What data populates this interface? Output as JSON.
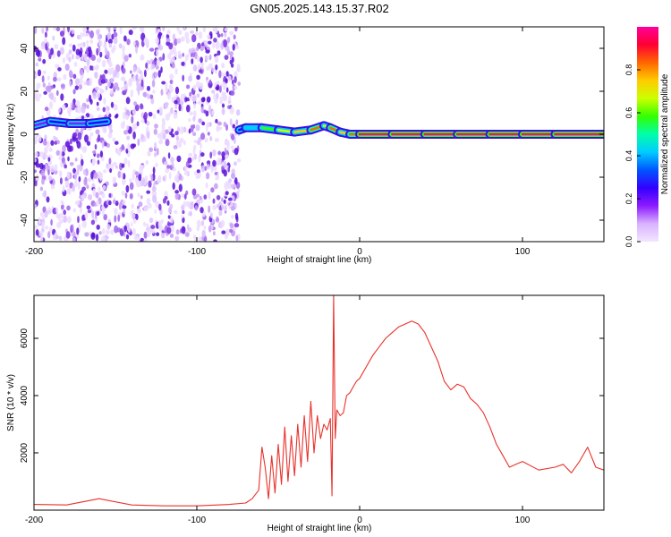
{
  "title": "GN05.2025.143.15.37.R02",
  "chart_data": [
    {
      "type": "heatmap",
      "xlabel": "Height of straight line (km)",
      "ylabel": "Frequency (Hz)",
      "xlim": [
        -200,
        150
      ],
      "ylim": [
        -50,
        50
      ],
      "xticks": [
        -200,
        -100,
        0,
        100
      ],
      "yticks": [
        -40,
        -20,
        0,
        20,
        40
      ],
      "colorbar": {
        "label": "Normalized spectral amplitude",
        "range": [
          0,
          1
        ],
        "ticks": [
          "0.0",
          "0.2",
          "0.4",
          "0.6",
          "0.8"
        ],
        "colormap": [
          "#f2e6ff",
          "#d9b3ff",
          "#8c1aff",
          "#3300ff",
          "#0055ff",
          "#00ccff",
          "#00ffaa",
          "#33ff00",
          "#ccff00",
          "#ffcc00",
          "#ff6600",
          "#ff0033",
          "#ff0099"
        ]
      },
      "noise_region": {
        "x": [
          -200,
          -74
        ],
        "y": [
          -50,
          50
        ],
        "amplitude": 0.15
      },
      "ridge": {
        "x": [
          -200,
          -190,
          -178,
          -166,
          -155,
          -74,
          -70,
          -60,
          -50,
          -40,
          -30,
          -22,
          -18,
          -12,
          -6,
          0,
          20,
          40,
          60,
          80,
          100,
          120,
          150
        ],
        "frequency": [
          4,
          6,
          5,
          5,
          6,
          2,
          3,
          3,
          2,
          1,
          2,
          4,
          3,
          1,
          0,
          0,
          0,
          0,
          0,
          0,
          0,
          0,
          0
        ],
        "amplitude": [
          0.2,
          0.25,
          0.18,
          0.22,
          0.2,
          0.3,
          0.45,
          0.6,
          0.7,
          0.8,
          0.85,
          0.7,
          0.9,
          0.8,
          0.85,
          1,
          1,
          1,
          1,
          1,
          1,
          1,
          1
        ]
      }
    },
    {
      "type": "line",
      "xlabel": "Height of straight line (km)",
      "ylabel": "SNR (10 * v/v)",
      "xlim": [
        -200,
        150
      ],
      "ylim": [
        0,
        7500
      ],
      "xticks": [
        -200,
        -100,
        0,
        100
      ],
      "yticks": [
        2000,
        4000,
        6000
      ],
      "color": "#e8322c",
      "series": [
        {
          "x": [
            -200,
            -180,
            -160,
            -140,
            -120,
            -100,
            -80,
            -70,
            -66,
            -62,
            -60,
            -58,
            -56,
            -54,
            -52,
            -50,
            -48,
            -46,
            -44,
            -42,
            -40,
            -38,
            -36,
            -34,
            -32,
            -30,
            -28,
            -26,
            -24,
            -22,
            -20,
            -18,
            -17,
            -16,
            -15,
            -14,
            -12,
            -10,
            -8,
            -6,
            -4,
            -2,
            0,
            4,
            8,
            12,
            16,
            20,
            24,
            28,
            32,
            36,
            40,
            44,
            48,
            52,
            56,
            60,
            64,
            68,
            72,
            76,
            80,
            84,
            88,
            92,
            96,
            100,
            110,
            120,
            125,
            130,
            135,
            140,
            145,
            150
          ],
          "y": [
            200,
            180,
            400,
            180,
            150,
            150,
            200,
            250,
            400,
            700,
            2200,
            1500,
            400,
            1900,
            600,
            2300,
            900,
            2900,
            1000,
            2600,
            1200,
            3000,
            1500,
            3300,
            1700,
            3800,
            2000,
            3300,
            2500,
            3000,
            2800,
            3200,
            500,
            7500,
            2500,
            3500,
            3300,
            3400,
            4000,
            4100,
            4300,
            4500,
            4600,
            5000,
            5400,
            5700,
            6000,
            6200,
            6400,
            6500,
            6600,
            6500,
            6200,
            5700,
            5200,
            4500,
            4200,
            4400,
            4300,
            3900,
            3700,
            3400,
            2900,
            2300,
            1900,
            1500,
            1600,
            1700,
            1400,
            1500,
            1600,
            1300,
            1700,
            2200,
            1500,
            1400
          ]
        }
      ]
    }
  ]
}
